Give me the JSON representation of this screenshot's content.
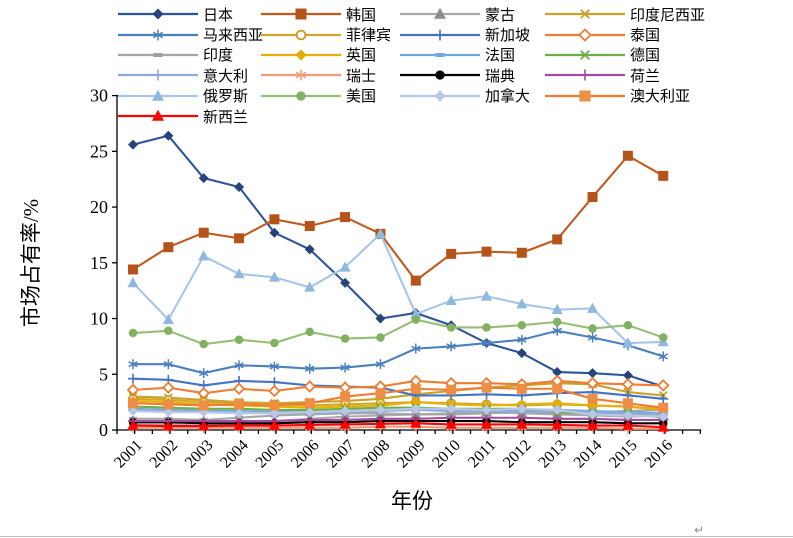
{
  "document": {
    "paragraph_mark": "↵"
  },
  "chart_data": {
    "type": "line",
    "title": "",
    "xlabel": "年份",
    "ylabel": "市场占有率/%",
    "ylim": [
      0,
      30
    ],
    "yticks": [
      0,
      5,
      10,
      15,
      20,
      25,
      30
    ],
    "grid": false,
    "legend_position": "top",
    "categories": [
      "2001",
      "2002",
      "2003",
      "2004",
      "2005",
      "2006",
      "2007",
      "2008",
      "2009",
      "2010",
      "2011",
      "2012",
      "2013",
      "2014",
      "2015",
      "2016"
    ],
    "series": [
      {
        "id": "japan",
        "label": "日本",
        "marker": "diamond",
        "color": "#30549B",
        "marker_color": "#27427C",
        "values": [
          25.6,
          26.4,
          22.6,
          21.8,
          17.7,
          16.2,
          13.2,
          10.0,
          10.5,
          9.4,
          7.8,
          6.9,
          5.2,
          5.1,
          4.9,
          3.9
        ]
      },
      {
        "id": "korea",
        "label": "韩国",
        "marker": "square",
        "color": "#C25A1E",
        "marker_color": "#B5541A",
        "values": [
          14.4,
          16.4,
          17.7,
          17.2,
          18.9,
          18.3,
          19.1,
          17.6,
          13.4,
          15.8,
          16.0,
          15.9,
          17.1,
          20.9,
          24.6,
          22.8
        ]
      },
      {
        "id": "mongolia",
        "label": "蒙古",
        "marker": "triangle",
        "color": "#ABABAB",
        "marker_color": "#8C8C8C",
        "values": [
          0.5,
          0.5,
          0.4,
          0.6,
          0.8,
          1.0,
          1.2,
          1.3,
          1.4,
          1.5,
          1.6,
          1.5,
          1.4,
          1.3,
          1.2,
          1.3
        ]
      },
      {
        "id": "indonesia",
        "label": "印度尼西亚",
        "marker": "x",
        "color": "#C9A227",
        "marker_color": "#C9A227",
        "values": [
          3.0,
          2.9,
          2.7,
          2.5,
          2.4,
          2.5,
          2.6,
          2.8,
          3.2,
          3.5,
          3.8,
          4.0,
          4.2,
          4.1,
          3.4,
          3.1
        ]
      },
      {
        "id": "malaysia",
        "label": "马来西亚",
        "marker": "asterisk",
        "color": "#4B80BE",
        "marker_color": "#4B80BE",
        "values": [
          5.9,
          5.9,
          5.1,
          5.8,
          5.7,
          5.5,
          5.6,
          5.9,
          7.3,
          7.5,
          7.8,
          8.1,
          8.9,
          8.3,
          7.6,
          6.6
        ]
      },
      {
        "id": "philippines",
        "label": "菲律宾",
        "marker": "circle-open",
        "color": "#D0A62B",
        "marker_color": "#C79B1F",
        "values": [
          2.8,
          2.7,
          2.5,
          2.4,
          2.3,
          2.2,
          2.3,
          2.4,
          2.5,
          2.4,
          2.3,
          2.2,
          2.3,
          2.2,
          2.1,
          1.9
        ]
      },
      {
        "id": "singapore",
        "label": "新加坡",
        "marker": "plus",
        "color": "#4472C4",
        "marker_color": "#4472C4",
        "values": [
          4.6,
          4.5,
          4.0,
          4.4,
          4.3,
          4.0,
          3.9,
          3.8,
          3.1,
          3.1,
          3.2,
          3.1,
          3.3,
          3.4,
          3.1,
          2.8
        ]
      },
      {
        "id": "thailand",
        "label": "泰国",
        "marker": "diamond-open",
        "color": "#ED7D31",
        "marker_color": "#ED7D31",
        "values": [
          3.6,
          3.8,
          3.3,
          3.7,
          3.5,
          3.9,
          3.8,
          3.9,
          4.4,
          4.2,
          4.2,
          4.1,
          4.4,
          4.2,
          4.1,
          4.0
        ]
      },
      {
        "id": "india",
        "label": "印度",
        "marker": "dash",
        "color": "#A6A6A6",
        "marker_color": "#9E9E9E",
        "values": [
          1.0,
          1.0,
          0.9,
          1.1,
          1.3,
          1.4,
          1.5,
          1.5,
          1.4,
          1.4,
          1.5,
          1.6,
          1.5,
          1.6,
          1.7,
          1.8
        ]
      },
      {
        "id": "uk",
        "label": "英国",
        "marker": "diamond",
        "color": "#E8B007",
        "marker_color": "#E3AC00",
        "values": [
          2.6,
          2.5,
          2.3,
          2.2,
          2.1,
          2.0,
          2.1,
          2.2,
          2.5,
          2.3,
          2.2,
          2.3,
          2.4,
          2.2,
          2.1,
          1.8
        ]
      },
      {
        "id": "france",
        "label": "法国",
        "marker": "dash",
        "color": "#6FA8DC",
        "marker_color": "#6FA8DC",
        "values": [
          1.9,
          1.8,
          1.7,
          1.7,
          1.6,
          1.6,
          1.7,
          1.8,
          1.9,
          1.8,
          1.8,
          1.7,
          1.8,
          1.7,
          1.6,
          1.5
        ]
      },
      {
        "id": "germany",
        "label": "德国",
        "marker": "x",
        "color": "#70AD47",
        "marker_color": "#70AD47",
        "values": [
          2.1,
          2.0,
          1.9,
          1.9,
          1.8,
          1.8,
          1.9,
          2.0,
          2.0,
          1.9,
          1.9,
          1.9,
          1.6,
          1.5,
          1.5,
          1.1
        ]
      },
      {
        "id": "italy",
        "label": "意大利",
        "marker": "plus",
        "color": "#8FAADC",
        "marker_color": "#8FAADC",
        "values": [
          1.8,
          1.7,
          1.6,
          1.6,
          1.5,
          1.5,
          1.6,
          1.7,
          1.8,
          1.7,
          1.7,
          1.6,
          1.7,
          1.6,
          1.5,
          1.4
        ]
      },
      {
        "id": "switzerland",
        "label": "瑞士",
        "marker": "asterisk",
        "color": "#F29B76",
        "marker_color": "#F29B76",
        "values": [
          0.2,
          0.2,
          0.2,
          0.2,
          0.2,
          0.2,
          0.2,
          0.3,
          0.3,
          0.2,
          0.2,
          0.2,
          0.2,
          0.2,
          0.1,
          0.1
        ]
      },
      {
        "id": "sweden",
        "label": "瑞典",
        "marker": "circle",
        "color": "#000000",
        "marker_color": "#000000",
        "values": [
          0.7,
          0.7,
          0.6,
          0.6,
          0.6,
          0.7,
          0.7,
          0.8,
          0.8,
          0.8,
          0.8,
          0.7,
          0.7,
          0.7,
          0.6,
          0.6
        ]
      },
      {
        "id": "netherlands",
        "label": "荷兰",
        "marker": "plus",
        "color": "#A04DA0",
        "marker_color": "#A04DA0",
        "values": [
          0.8,
          0.8,
          0.8,
          0.8,
          0.8,
          0.9,
          0.9,
          1.0,
          1.0,
          1.1,
          1.1,
          1.1,
          1.0,
          1.0,
          0.9,
          0.9
        ]
      },
      {
        "id": "russia",
        "label": "俄罗斯",
        "marker": "triangle",
        "color": "#A5C6E8",
        "marker_color": "#8FB8E0",
        "values": [
          13.2,
          9.9,
          15.6,
          14.0,
          13.7,
          12.8,
          14.6,
          17.6,
          10.4,
          11.6,
          12.0,
          11.3,
          10.8,
          10.9,
          7.8,
          7.9
        ]
      },
      {
        "id": "usa",
        "label": "美国",
        "marker": "circle",
        "color": "#97BE77",
        "marker_color": "#82B162",
        "values": [
          8.7,
          8.9,
          7.7,
          8.1,
          7.8,
          8.8,
          8.2,
          8.3,
          9.9,
          9.2,
          9.2,
          9.4,
          9.7,
          9.1,
          9.4,
          8.3
        ]
      },
      {
        "id": "canada",
        "label": "加拿大",
        "marker": "diamond",
        "color": "#B9C7E9",
        "marker_color": "#B9C7E9",
        "values": [
          1.7,
          1.6,
          1.6,
          1.5,
          1.5,
          1.6,
          1.7,
          1.8,
          1.9,
          1.9,
          1.8,
          1.9,
          1.8,
          1.4,
          1.3,
          1.2
        ]
      },
      {
        "id": "australia",
        "label": "澳大利亚",
        "marker": "square",
        "color": "#ED7D31",
        "marker_color": "#ED8E44",
        "values": [
          2.4,
          2.3,
          2.2,
          2.3,
          2.2,
          2.4,
          3.0,
          3.3,
          3.7,
          3.6,
          3.8,
          3.7,
          3.7,
          2.8,
          2.4,
          2.0
        ]
      },
      {
        "id": "new_zealand",
        "label": "新西兰",
        "marker": "triangle",
        "color": "#FF0000",
        "marker_color": "#FF0000",
        "values": [
          0.4,
          0.35,
          0.35,
          0.4,
          0.4,
          0.45,
          0.5,
          0.55,
          0.6,
          0.5,
          0.5,
          0.5,
          0.45,
          0.4,
          0.4,
          0.25
        ]
      }
    ]
  }
}
